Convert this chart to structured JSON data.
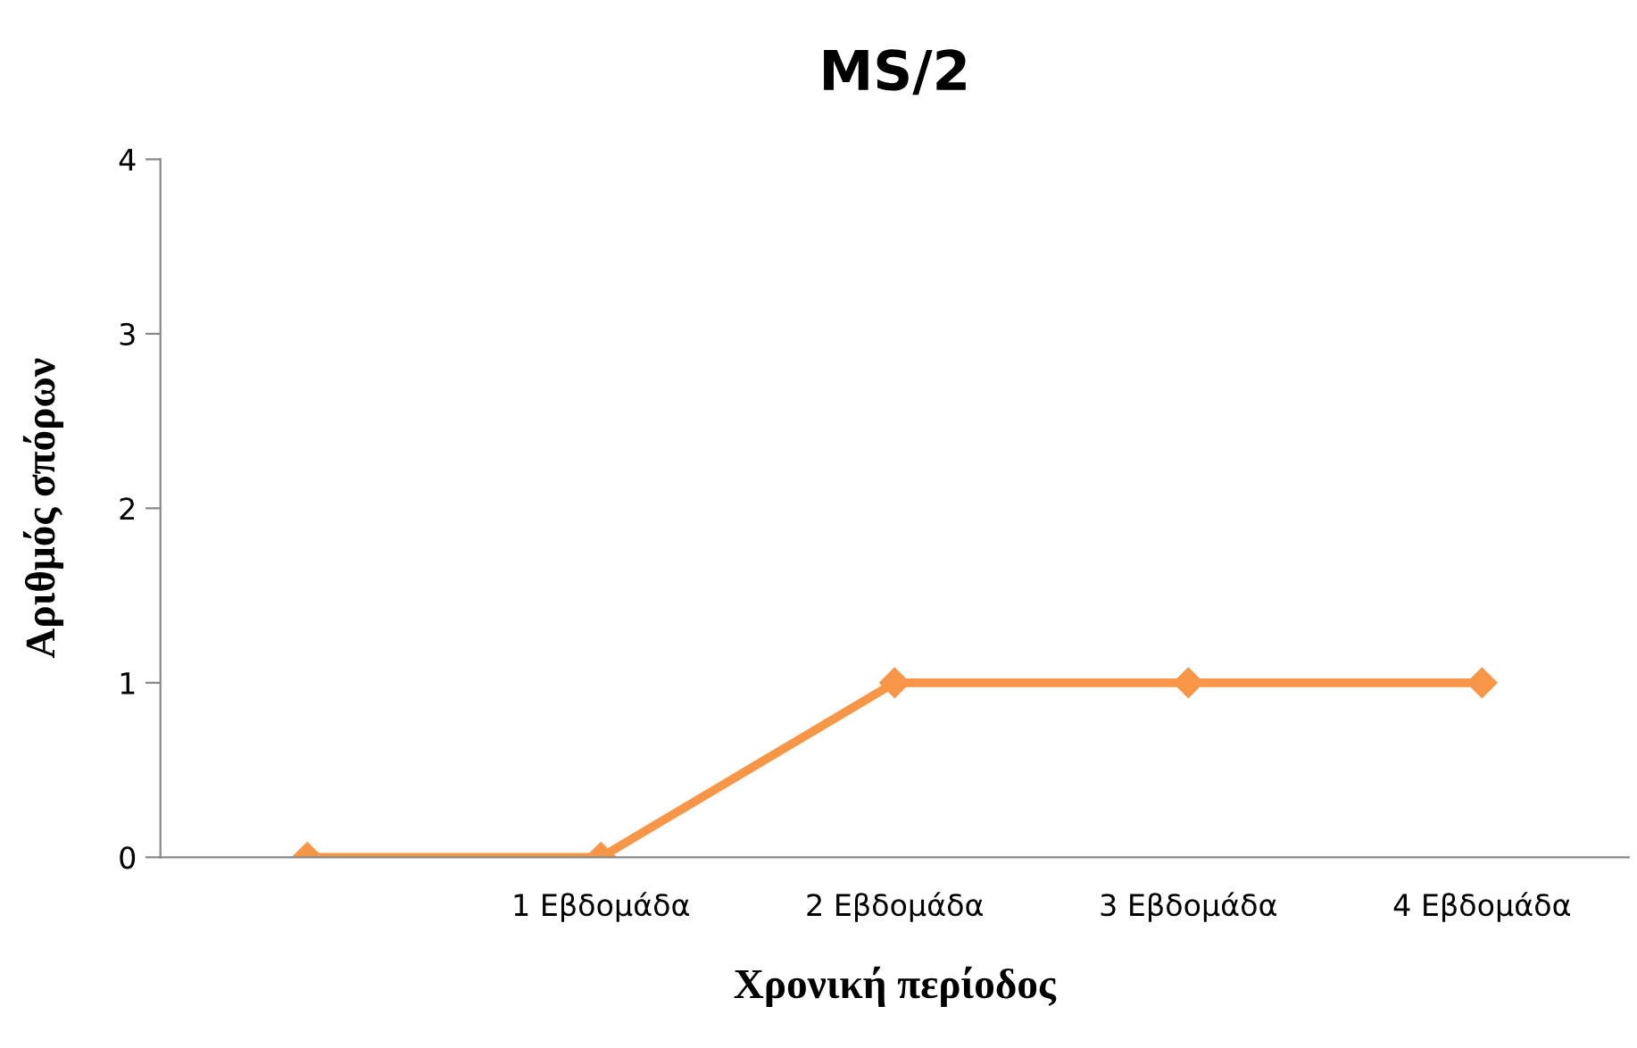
{
  "chart_data": {
    "type": "line",
    "title": "MS/2",
    "xlabel": "Χρονική περίοδος",
    "ylabel": "Αριθμός σπόρων",
    "categories": [
      null,
      "1 Εβδομάδα",
      "2 Εβδομάδα",
      "3 Εβδομάδα",
      "4 Εβδομάδα"
    ],
    "series": [
      {
        "color": "#f79646",
        "values": [
          0,
          0,
          1,
          1,
          1
        ]
      }
    ],
    "ylim": [
      0,
      4
    ],
    "yticks": [
      0,
      1,
      2,
      3,
      4
    ],
    "grid": false,
    "legend": false,
    "marker": "diamond",
    "line_style": "solid"
  }
}
